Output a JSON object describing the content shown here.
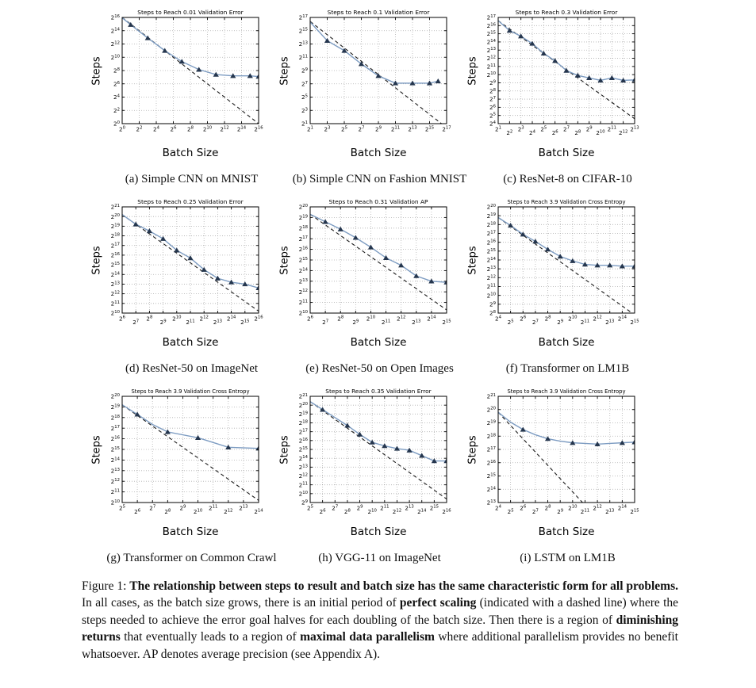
{
  "page": {
    "background": "#ffffff"
  },
  "colors": {
    "line": "#7d9cc2",
    "marker": "#25364e",
    "dashed": "#1a1a1a",
    "grid": "#9b9b9b",
    "axis": "#000000"
  },
  "figure": {
    "caption_parts": [
      {
        "text": "Figure 1: ",
        "bold": false
      },
      {
        "text": "The relationship between steps to result and batch size has the same characteristic form for all problems.",
        "bold": true
      },
      {
        "text": " In all cases, as the batch size grows, there is an initial period of ",
        "bold": false
      },
      {
        "text": "perfect scaling",
        "bold": true
      },
      {
        "text": " (indicated with a dashed line) where the steps needed to achieve the error goal halves for each doubling of the batch size. Then there is a region of ",
        "bold": false
      },
      {
        "text": "diminishing returns",
        "bold": true
      },
      {
        "text": " that eventually leads to a region of ",
        "bold": false
      },
      {
        "text": "maximal data parallelism",
        "bold": true
      },
      {
        "text": " where additional parallelism provides no benefit whatsoever. AP denotes average precision (see Appendix A).",
        "bold": false
      }
    ]
  },
  "chart_data": [
    {
      "type": "line",
      "title": "Steps to Reach 0.01 Validation Error",
      "xlabel": "Batch Size",
      "ylabel": "Steps",
      "subcaption": "(a) Simple CNN on MNIST",
      "axis_scale": "log2 (labels are powers of 2)",
      "x_range": [
        0,
        16
      ],
      "y_range": [
        0,
        16
      ],
      "x_label_step": 2,
      "y_label_step": 2,
      "line_x": [
        0,
        1,
        3,
        5,
        7,
        9,
        11,
        13,
        15,
        16
      ],
      "line_y": [
        15.95,
        14.9,
        12.9,
        11.0,
        9.35,
        8.15,
        7.4,
        7.2,
        7.2,
        7.1
      ],
      "marker_x": [
        1,
        3,
        5,
        7,
        9,
        11,
        13,
        15,
        16
      ],
      "marker_y": [
        14.9,
        12.9,
        11.0,
        9.35,
        8.15,
        7.4,
        7.2,
        7.2,
        7.1
      ],
      "dashed_x": [
        0,
        16
      ],
      "dashed_y": [
        16,
        0
      ]
    },
    {
      "type": "line",
      "title": "Steps to Reach 0.1 Validation Error",
      "xlabel": "Batch Size",
      "ylabel": "Steps",
      "subcaption": "(b) Simple CNN on Fashion MNIST",
      "x_range": [
        1,
        17
      ],
      "y_range": [
        1,
        17
      ],
      "x_label_step": 2,
      "y_label_step": 2,
      "line_x": [
        1,
        3,
        5,
        7,
        9,
        11,
        13,
        15,
        16
      ],
      "line_y": [
        16.3,
        13.5,
        12.0,
        10.0,
        8.2,
        7.1,
        7.1,
        7.1,
        7.4
      ],
      "marker_x": [
        3,
        5,
        7,
        9,
        11,
        13,
        15,
        16
      ],
      "marker_y": [
        13.5,
        12.0,
        10.0,
        8.2,
        7.1,
        7.1,
        7.1,
        7.4
      ],
      "dashed_x": [
        1,
        17
      ],
      "dashed_y": [
        16.4,
        0.4
      ]
    },
    {
      "type": "line",
      "title": "Steps to Reach 0.3 Validation Error",
      "xlabel": "Batch Size",
      "ylabel": "Steps",
      "subcaption": "(c) ResNet-8 on CIFAR-10",
      "x_range": [
        1,
        13
      ],
      "y_range": [
        4,
        17
      ],
      "x_label_step": 1,
      "y_label_step": 1,
      "line_x": [
        1,
        2,
        3,
        4,
        5,
        6,
        7,
        8,
        9,
        10,
        11,
        12,
        13
      ],
      "line_y": [
        16.6,
        15.4,
        14.7,
        13.8,
        12.6,
        11.7,
        10.5,
        9.9,
        9.6,
        9.3,
        9.6,
        9.3,
        9.35
      ],
      "marker_x": [
        2,
        3,
        4,
        5,
        6,
        7,
        8,
        9,
        10,
        11,
        12,
        13
      ],
      "marker_y": [
        15.4,
        14.7,
        13.8,
        12.6,
        11.7,
        10.5,
        9.9,
        9.6,
        9.3,
        9.6,
        9.3,
        9.35
      ],
      "dashed_x": [
        1,
        13
      ],
      "dashed_y": [
        16.6,
        4.6
      ]
    },
    {
      "type": "line",
      "title": "Steps to Reach 0.25 Validation Error",
      "xlabel": "Batch Size",
      "ylabel": "Steps",
      "subcaption": "(d) ResNet-50 on ImageNet",
      "x_range": [
        6,
        16
      ],
      "y_range": [
        10,
        21
      ],
      "x_label_step": 1,
      "y_label_step": 1,
      "line_x": [
        6,
        7,
        8,
        9,
        10,
        11,
        12,
        13,
        14,
        15,
        16
      ],
      "line_y": [
        20.2,
        19.2,
        18.5,
        17.7,
        16.5,
        15.7,
        14.5,
        13.6,
        13.2,
        13.0,
        12.6
      ],
      "marker_x": [
        7,
        8,
        9,
        10,
        11,
        12,
        13,
        14,
        15,
        16
      ],
      "marker_y": [
        19.2,
        18.5,
        17.7,
        16.5,
        15.7,
        14.5,
        13.6,
        13.2,
        13.0,
        12.6
      ],
      "dashed_x": [
        6,
        16
      ],
      "dashed_y": [
        20.2,
        10.2
      ]
    },
    {
      "type": "line",
      "title": "Steps to Reach 0.31 Validation AP",
      "xlabel": "Batch Size",
      "ylabel": "Steps",
      "subcaption": "(e) ResNet-50 on Open Images",
      "x_range": [
        6,
        15
      ],
      "y_range": [
        10,
        20
      ],
      "x_label_step": 1,
      "y_label_step": 1,
      "line_x": [
        6,
        7,
        8,
        9,
        10,
        11,
        12,
        13,
        14,
        15
      ],
      "line_y": [
        19.3,
        18.6,
        17.9,
        17.1,
        16.2,
        15.2,
        14.5,
        13.5,
        13.0,
        12.9
      ],
      "marker_x": [
        7,
        8,
        9,
        10,
        11,
        12,
        13,
        14,
        15
      ],
      "marker_y": [
        18.6,
        17.9,
        17.1,
        16.2,
        15.2,
        14.5,
        13.5,
        13.0,
        12.9
      ],
      "dashed_x": [
        6,
        15
      ],
      "dashed_y": [
        19.3,
        10.3
      ]
    },
    {
      "type": "line",
      "title": "Steps to Reach 3.9 Validation Cross Entropy",
      "xlabel": "Batch Size",
      "ylabel": "Steps",
      "subcaption": "(f) Transformer on LM1B",
      "x_range": [
        4,
        15
      ],
      "y_range": [
        8,
        20
      ],
      "x_label_step": 1,
      "y_label_step": 1,
      "line_x": [
        4,
        5,
        6,
        7,
        8,
        9,
        10,
        11,
        12,
        13,
        14,
        15
      ],
      "line_y": [
        18.8,
        17.9,
        16.9,
        16.1,
        15.2,
        14.4,
        13.9,
        13.5,
        13.4,
        13.4,
        13.3,
        13.3
      ],
      "marker_x": [
        5,
        6,
        7,
        8,
        9,
        10,
        11,
        12,
        13,
        14,
        15
      ],
      "marker_y": [
        17.9,
        16.9,
        16.1,
        15.2,
        14.4,
        13.9,
        13.5,
        13.4,
        13.4,
        13.3,
        13.3
      ],
      "dashed_x": [
        4,
        15
      ],
      "dashed_y": [
        18.8,
        7.8
      ]
    },
    {
      "type": "line",
      "title": "Steps to Reach 3.9 Validation Cross Entropy",
      "xlabel": "Batch Size",
      "ylabel": "Steps",
      "subcaption": "(g) Transformer on Common Crawl",
      "x_range": [
        5,
        14
      ],
      "y_range": [
        10,
        20
      ],
      "x_label_step": 1,
      "y_label_step": 1,
      "line_x": [
        5,
        6,
        7,
        8,
        10,
        12,
        14
      ],
      "line_y": [
        19.2,
        18.3,
        17.35,
        16.65,
        16.1,
        15.2,
        15.1
      ],
      "marker_x": [
        6,
        8,
        10,
        12,
        14
      ],
      "marker_y": [
        18.3,
        16.65,
        16.1,
        15.2,
        15.1
      ],
      "dashed_x": [
        5,
        14
      ],
      "dashed_y": [
        19.2,
        10.2
      ]
    },
    {
      "type": "line",
      "title": "Steps to Reach 0.35 Validation Error",
      "xlabel": "Batch Size",
      "ylabel": "Steps",
      "subcaption": "(h) VGG-11 on ImageNet",
      "x_range": [
        5,
        16
      ],
      "y_range": [
        9,
        21
      ],
      "x_label_step": 1,
      "y_label_step": 1,
      "line_x": [
        5,
        6,
        7,
        8,
        9,
        10,
        11,
        12,
        13,
        14,
        15,
        16
      ],
      "line_y": [
        20.4,
        19.5,
        18.6,
        17.7,
        16.7,
        15.8,
        15.4,
        15.1,
        14.9,
        14.3,
        13.7,
        13.7
      ],
      "marker_x": [
        6,
        8,
        9,
        10,
        11,
        12,
        13,
        14,
        15,
        16
      ],
      "marker_y": [
        19.5,
        17.7,
        16.7,
        15.8,
        15.4,
        15.1,
        14.9,
        14.3,
        13.7,
        13.7
      ],
      "dashed_x": [
        5,
        16
      ],
      "dashed_y": [
        20.4,
        9.4
      ]
    },
    {
      "type": "line",
      "title": "Steps to Reach 3.9 Validation Cross Entropy",
      "xlabel": "Batch Size",
      "ylabel": "Steps",
      "subcaption": "(i) LSTM on LM1B",
      "x_range": [
        4,
        15
      ],
      "y_range": [
        13,
        21
      ],
      "x_label_step": 1,
      "y_label_step": 1,
      "line_x": [
        4,
        5,
        6,
        7,
        8,
        9,
        10,
        11,
        12,
        13,
        14,
        15
      ],
      "line_y": [
        19.8,
        19.05,
        18.5,
        18.1,
        17.8,
        17.62,
        17.5,
        17.45,
        17.4,
        17.45,
        17.5,
        17.55
      ],
      "marker_x": [
        6,
        8,
        10,
        12,
        14,
        15
      ],
      "marker_y": [
        18.5,
        17.8,
        17.5,
        17.4,
        17.5,
        17.55
      ],
      "dashed_x": [
        4,
        15
      ],
      "dashed_y": [
        19.8,
        8.8
      ]
    }
  ]
}
